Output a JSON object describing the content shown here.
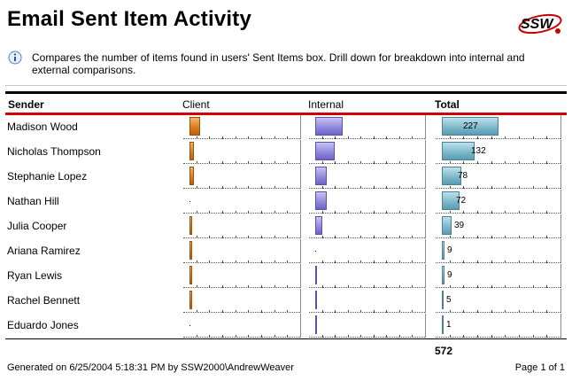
{
  "report": {
    "title": "Email Sent Item Activity",
    "logo_text": "SSW",
    "description": "Compares the number of items found in users' Sent Items box. Drill down for breakdown into internal and external comparisons."
  },
  "columns": {
    "sender": "Sender",
    "client": "Client",
    "internal": "Internal",
    "total": "Total"
  },
  "rows": [
    {
      "sender": "Madison Wood",
      "client": 0.09,
      "internal": 0.24,
      "total": 227,
      "total_label": "227"
    },
    {
      "sender": "Nicholas Thompson",
      "client": 0.04,
      "internal": 0.17,
      "total": 132,
      "total_label": "132"
    },
    {
      "sender": "Stephanie Lopez",
      "client": 0.04,
      "internal": 0.1,
      "total": 78,
      "total_label": "78"
    },
    {
      "sender": "Nathan Hill",
      "client": 0.0,
      "internal": 0.1,
      "total": 72,
      "total_label": "72"
    },
    {
      "sender": "Julia Cooper",
      "client": 0.02,
      "internal": 0.06,
      "total": 39,
      "total_label": "39"
    },
    {
      "sender": "Ariana Ramirez",
      "client": 0.02,
      "internal": 0.0,
      "total": 9,
      "total_label": "9"
    },
    {
      "sender": "Ryan Lewis",
      "client": 0.02,
      "internal": 0.01,
      "total": 9,
      "total_label": "9"
    },
    {
      "sender": "Rachel Bennett",
      "client": 0.02,
      "internal": 0.01,
      "total": 5,
      "total_label": "5"
    },
    {
      "sender": "Eduardo Jones",
      "client": 0.0,
      "internal": 0.01,
      "total": 1,
      "total_label": "1"
    }
  ],
  "total_scale_max": 500,
  "grand_total": "572",
  "footer": {
    "generated": "Generated on 6/25/2004 5:18:31 PM by SSW2000\\AndrewWeaver",
    "page": "Page 1 of 1"
  },
  "colors": {
    "header_rule": "#d40000",
    "logo_red": "#cc0000"
  }
}
